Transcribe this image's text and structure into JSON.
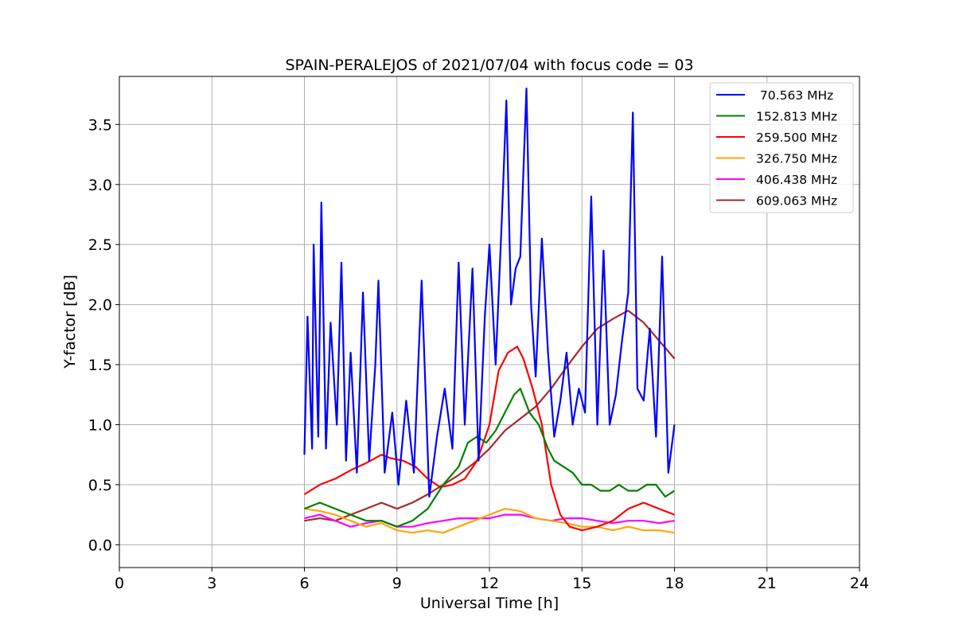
{
  "chart_data": {
    "type": "line",
    "title": "SPAIN-PERALEJOS of 2021/07/04 with focus code = 03",
    "xlabel": "Universal Time [h]",
    "ylabel": "Y-factor [dB]",
    "xlim": [
      0,
      24
    ],
    "ylim": [
      -0.19,
      3.9
    ],
    "xticks": [
      0,
      3,
      6,
      9,
      12,
      15,
      18,
      21,
      24
    ],
    "yticks": [
      0.0,
      0.5,
      1.0,
      1.5,
      2.0,
      2.5,
      3.0,
      3.5
    ],
    "xtick_labels": [
      "0",
      "3",
      "6",
      "9",
      "12",
      "15",
      "18",
      "21",
      "24"
    ],
    "ytick_labels": [
      "0.0",
      "0.5",
      "1.0",
      "1.5",
      "2.0",
      "2.5",
      "3.0",
      "3.5"
    ],
    "grid": true,
    "legend_position": "top-right",
    "series": [
      {
        "name": " 70.563 MHz",
        "color": "#0000ff",
        "x": [
          6.0,
          6.1,
          6.25,
          6.3,
          6.45,
          6.55,
          6.7,
          6.85,
          7.05,
          7.2,
          7.35,
          7.5,
          7.7,
          7.9,
          8.1,
          8.3,
          8.4,
          8.6,
          8.85,
          9.05,
          9.3,
          9.55,
          9.8,
          10.05,
          10.3,
          10.55,
          10.8,
          11.0,
          11.2,
          11.45,
          11.65,
          11.85,
          12.0,
          12.2,
          12.4,
          12.55,
          12.7,
          12.85,
          13.0,
          13.2,
          13.35,
          13.5,
          13.7,
          13.9,
          14.1,
          14.3,
          14.5,
          14.7,
          14.9,
          15.1,
          15.3,
          15.5,
          15.7,
          15.9,
          16.1,
          16.3,
          16.5,
          16.65,
          16.8,
          17.0,
          17.2,
          17.4,
          17.6,
          17.8,
          18.0
        ],
        "y": [
          0.75,
          1.9,
          0.8,
          2.5,
          0.9,
          2.85,
          0.8,
          1.85,
          1.0,
          2.35,
          0.7,
          1.6,
          0.6,
          2.1,
          0.7,
          1.5,
          2.2,
          0.6,
          1.1,
          0.5,
          1.2,
          0.6,
          2.2,
          0.4,
          0.9,
          1.3,
          0.8,
          2.35,
          1.0,
          2.3,
          0.7,
          1.9,
          2.5,
          1.5,
          2.7,
          3.7,
          2.0,
          2.3,
          2.4,
          3.8,
          2.0,
          1.4,
          2.55,
          1.6,
          0.9,
          1.2,
          1.6,
          1.0,
          1.3,
          1.1,
          2.9,
          1.0,
          2.45,
          1.0,
          1.25,
          1.7,
          2.1,
          3.6,
          1.3,
          1.2,
          1.8,
          0.9,
          2.4,
          0.6,
          1.0
        ]
      },
      {
        "name": "152.813 MHz",
        "color": "#008000",
        "x": [
          6.0,
          6.5,
          7.0,
          7.5,
          8.0,
          8.5,
          9.0,
          9.5,
          10.0,
          10.5,
          11.0,
          11.3,
          11.6,
          11.9,
          12.2,
          12.5,
          12.8,
          13.0,
          13.3,
          13.6,
          13.9,
          14.1,
          14.4,
          14.7,
          15.0,
          15.3,
          15.6,
          15.9,
          16.2,
          16.5,
          16.8,
          17.1,
          17.4,
          17.7,
          18.0
        ],
        "y": [
          0.3,
          0.35,
          0.3,
          0.25,
          0.2,
          0.2,
          0.15,
          0.2,
          0.3,
          0.5,
          0.65,
          0.85,
          0.9,
          0.85,
          0.95,
          1.1,
          1.25,
          1.3,
          1.1,
          1.0,
          0.8,
          0.7,
          0.65,
          0.6,
          0.5,
          0.5,
          0.45,
          0.45,
          0.5,
          0.45,
          0.45,
          0.5,
          0.5,
          0.4,
          0.45
        ]
      },
      {
        "name": "259.500 MHz",
        "color": "#ff0000",
        "x": [
          6.0,
          6.5,
          7.0,
          7.5,
          8.0,
          8.5,
          8.8,
          9.2,
          9.6,
          10.0,
          10.4,
          10.8,
          11.2,
          11.6,
          12.0,
          12.3,
          12.6,
          12.9,
          13.1,
          13.4,
          13.7,
          14.0,
          14.3,
          14.6,
          15.0,
          15.5,
          16.0,
          16.5,
          17.0,
          17.5,
          18.0
        ],
        "y": [
          0.42,
          0.5,
          0.55,
          0.62,
          0.68,
          0.75,
          0.72,
          0.7,
          0.65,
          0.55,
          0.48,
          0.5,
          0.55,
          0.7,
          1.0,
          1.45,
          1.6,
          1.65,
          1.55,
          1.3,
          1.0,
          0.5,
          0.25,
          0.15,
          0.12,
          0.15,
          0.2,
          0.3,
          0.35,
          0.3,
          0.25
        ]
      },
      {
        "name": "326.750 MHz",
        "color": "#ffa500",
        "x": [
          6.0,
          6.5,
          7.0,
          7.5,
          8.0,
          8.5,
          9.0,
          9.5,
          10.0,
          10.5,
          11.0,
          11.5,
          12.0,
          12.5,
          13.0,
          13.5,
          14.0,
          14.5,
          15.0,
          15.5,
          16.0,
          16.5,
          17.0,
          17.5,
          18.0
        ],
        "y": [
          0.3,
          0.28,
          0.25,
          0.2,
          0.15,
          0.18,
          0.12,
          0.1,
          0.12,
          0.1,
          0.15,
          0.2,
          0.25,
          0.3,
          0.28,
          0.22,
          0.2,
          0.18,
          0.15,
          0.15,
          0.12,
          0.15,
          0.12,
          0.12,
          0.1
        ]
      },
      {
        "name": "406.438 MHz",
        "color": "#ff00ff",
        "x": [
          6.0,
          6.5,
          7.0,
          7.5,
          8.0,
          8.5,
          9.0,
          9.5,
          10.0,
          10.5,
          11.0,
          11.5,
          12.0,
          12.5,
          13.0,
          13.5,
          14.0,
          14.5,
          15.0,
          15.5,
          16.0,
          16.5,
          17.0,
          17.5,
          18.0
        ],
        "y": [
          0.22,
          0.25,
          0.2,
          0.15,
          0.18,
          0.2,
          0.15,
          0.15,
          0.18,
          0.2,
          0.22,
          0.22,
          0.22,
          0.25,
          0.25,
          0.22,
          0.2,
          0.22,
          0.22,
          0.2,
          0.18,
          0.2,
          0.2,
          0.18,
          0.2
        ]
      },
      {
        "name": "609.063 MHz",
        "color": "#a52a2a",
        "x": [
          6.0,
          6.5,
          7.0,
          7.5,
          8.0,
          8.5,
          9.0,
          9.5,
          10.0,
          10.5,
          11.0,
          11.5,
          12.0,
          12.5,
          13.0,
          13.5,
          14.0,
          14.5,
          15.0,
          15.5,
          16.0,
          16.5,
          17.0,
          17.5,
          18.0
        ],
        "y": [
          0.2,
          0.22,
          0.2,
          0.25,
          0.3,
          0.35,
          0.3,
          0.35,
          0.42,
          0.5,
          0.58,
          0.68,
          0.8,
          0.95,
          1.05,
          1.15,
          1.3,
          1.48,
          1.65,
          1.8,
          1.88,
          1.95,
          1.85,
          1.7,
          1.55
        ]
      }
    ]
  }
}
